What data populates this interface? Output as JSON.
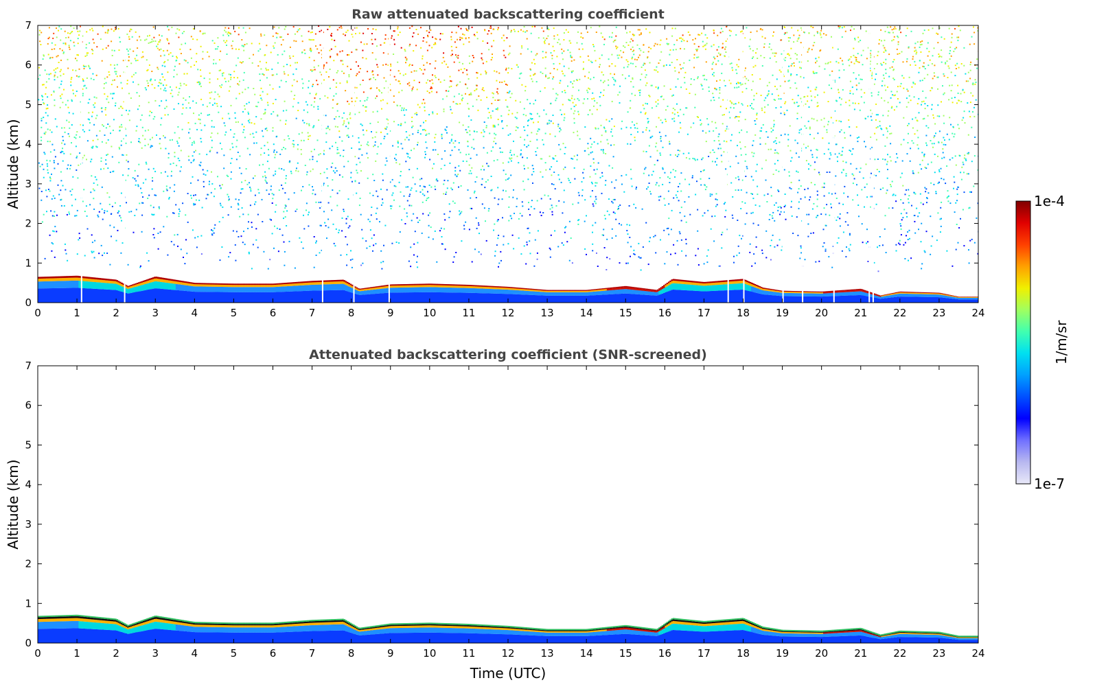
{
  "chart_data": [
    {
      "type": "heatmap",
      "title": "Raw attenuated backscattering coefficient",
      "xlabel": "",
      "ylabel": "Altitude (km)",
      "x_range": [
        0,
        24
      ],
      "y_range": [
        0,
        7
      ],
      "x_ticks": [
        "0",
        "1",
        "2",
        "3",
        "4",
        "5",
        "6",
        "7",
        "8",
        "9",
        "10",
        "11",
        "12",
        "13",
        "14",
        "15",
        "16",
        "17",
        "18",
        "19",
        "20",
        "21",
        "22",
        "23",
        "24"
      ],
      "y_ticks": [
        "0",
        "1",
        "2",
        "3",
        "4",
        "5",
        "6",
        "7"
      ],
      "boundary_layer_top_km": {
        "time_utc": [
          0,
          1,
          2,
          2.3,
          3,
          4,
          5,
          6,
          7,
          7.8,
          8.2,
          9,
          10,
          11,
          12,
          13,
          14,
          15,
          15.8,
          16.2,
          17,
          18,
          18.5,
          19,
          20,
          21,
          21.5,
          22,
          23,
          23.5,
          24
        ],
        "height_km": [
          0.65,
          0.68,
          0.58,
          0.42,
          0.66,
          0.5,
          0.48,
          0.48,
          0.55,
          0.58,
          0.35,
          0.46,
          0.48,
          0.45,
          0.4,
          0.32,
          0.32,
          0.42,
          0.32,
          0.6,
          0.52,
          0.6,
          0.38,
          0.3,
          0.28,
          0.35,
          0.18,
          0.28,
          0.25,
          0.15,
          0.15
        ]
      },
      "colormap": "jet",
      "grid": false
    },
    {
      "type": "heatmap",
      "title": "Attenuated backscattering coefficient (SNR-screened)",
      "xlabel": "Time (UTC)",
      "ylabel": "Altitude (km)",
      "x_range": [
        0,
        24
      ],
      "y_range": [
        0,
        7
      ],
      "x_ticks": [
        "0",
        "1",
        "2",
        "3",
        "4",
        "5",
        "6",
        "7",
        "8",
        "9",
        "10",
        "11",
        "12",
        "13",
        "14",
        "15",
        "16",
        "17",
        "18",
        "19",
        "20",
        "21",
        "22",
        "23",
        "24"
      ],
      "y_ticks": [
        "0",
        "1",
        "2",
        "3",
        "4",
        "5",
        "6",
        "7"
      ],
      "colormap": "jet",
      "grid": false
    }
  ],
  "colorbar": {
    "label": "1/m/sr",
    "max_label": "1e-4",
    "min_label": "1e-7",
    "colors": [
      "#e8e8f8",
      "#b8b8f0",
      "#7070ff",
      "#0000ff",
      "#0050ff",
      "#00a0ff",
      "#00e0f0",
      "#40ffb0",
      "#a0ff60",
      "#f0f000",
      "#ffa000",
      "#ff4000",
      "#e00000",
      "#800000"
    ]
  }
}
